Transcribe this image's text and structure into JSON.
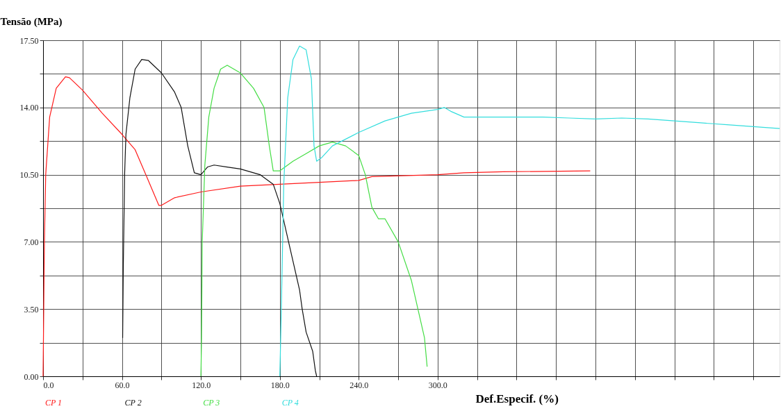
{
  "chart_data": {
    "type": "line",
    "xlabel": "Def.Especif. (%)",
    "ylabel": "Tensão (MPa)",
    "xlim": [
      0,
      560
    ],
    "ylim": [
      0,
      17.5
    ],
    "xticks": [
      {
        "value": 0,
        "label": "0.0"
      },
      {
        "value": 30,
        "label": null
      },
      {
        "value": 60,
        "label": "60.0"
      },
      {
        "value": 90,
        "label": null
      },
      {
        "value": 120,
        "label": "120.0"
      },
      {
        "value": 150,
        "label": null
      },
      {
        "value": 180,
        "label": "180.0"
      },
      {
        "value": 210,
        "label": null
      },
      {
        "value": 240,
        "label": "240.0"
      },
      {
        "value": 270,
        "label": null
      },
      {
        "value": 300,
        "label": "300.0"
      },
      {
        "value": 330,
        "label": null
      },
      {
        "value": 360,
        "label": null
      },
      {
        "value": 390,
        "label": null
      },
      {
        "value": 420,
        "label": null
      },
      {
        "value": 450,
        "label": null
      },
      {
        "value": 480,
        "label": null
      },
      {
        "value": 510,
        "label": null
      },
      {
        "value": 540,
        "label": null
      }
    ],
    "yticks": [
      {
        "value": 0,
        "label": "0.00"
      },
      {
        "value": 1.75,
        "label": null
      },
      {
        "value": 3.5,
        "label": "3.50"
      },
      {
        "value": 5.25,
        "label": null
      },
      {
        "value": 7,
        "label": "7.00"
      },
      {
        "value": 8.75,
        "label": null
      },
      {
        "value": 10.5,
        "label": "10.50"
      },
      {
        "value": 12.25,
        "label": null
      },
      {
        "value": 14,
        "label": "14.00"
      },
      {
        "value": 15.75,
        "label": null
      },
      {
        "value": 17.5,
        "label": "17.50"
      }
    ],
    "grid": true,
    "legend": false,
    "marker": "none",
    "line_style": "solid",
    "series": [
      {
        "name": "CP 1",
        "color": "#ff1a1a",
        "x": [
          0,
          1,
          2,
          5,
          10,
          17,
          20,
          30,
          45,
          60,
          70,
          80,
          88,
          90,
          100,
          120,
          150,
          180,
          210,
          240,
          250,
          300,
          320,
          350,
          416
        ],
        "values": [
          0,
          7,
          10.5,
          13.5,
          15,
          15.6,
          15.55,
          14.9,
          13.7,
          12.6,
          11.8,
          10.2,
          8.9,
          8.9,
          9.3,
          9.6,
          9.9,
          10.0,
          10.1,
          10.2,
          10.4,
          10.5,
          10.6,
          10.65,
          10.7
        ]
      },
      {
        "name": "CP 2",
        "color": "#111111",
        "x": [
          60.5,
          61,
          62,
          63,
          66,
          70,
          75,
          80,
          90,
          100,
          105,
          110,
          115,
          120,
          125,
          130,
          140,
          150,
          165,
          175,
          180,
          185,
          190,
          195,
          197,
          200,
          205,
          207,
          208
        ],
        "values": [
          2,
          5.8,
          10.5,
          12.6,
          14.5,
          16.0,
          16.5,
          16.45,
          15.8,
          14.8,
          14.0,
          12.0,
          10.6,
          10.5,
          10.9,
          11.0,
          10.9,
          10.8,
          10.5,
          10.0,
          9.0,
          7.5,
          6.0,
          4.5,
          3.5,
          2.3,
          1.3,
          0.3,
          0
        ]
      },
      {
        "name": "CP 3",
        "color": "#44dd44",
        "x": [
          120,
          120.5,
          121,
          123,
          126,
          130,
          135,
          140,
          150,
          160,
          168,
          172,
          175,
          180,
          190,
          200,
          210,
          220,
          230,
          240,
          245,
          250,
          255,
          260,
          270,
          280,
          285,
          290,
          292
        ],
        "values": [
          0,
          2,
          7,
          11,
          13.5,
          15,
          16.0,
          16.2,
          15.8,
          15.0,
          14.0,
          12,
          10.7,
          10.7,
          11.2,
          11.6,
          12.0,
          12.2,
          12.0,
          11.5,
          10.5,
          8.8,
          8.2,
          8.2,
          7.0,
          5.0,
          3.5,
          2.0,
          0.5
        ]
      },
      {
        "name": "CP 4",
        "color": "#33dddd",
        "x": [
          180,
          181,
          183,
          186,
          190,
          195,
          200,
          204,
          206,
          208,
          212,
          220,
          240,
          260,
          280,
          300,
          305,
          310,
          320,
          350,
          380,
          400,
          420,
          440,
          460,
          480,
          500,
          520,
          540,
          560
        ],
        "values": [
          0,
          3,
          10,
          14.5,
          16.5,
          17.2,
          17.0,
          15.5,
          12,
          11.2,
          11.4,
          12.0,
          12.7,
          13.3,
          13.7,
          13.9,
          14.0,
          13.8,
          13.5,
          13.5,
          13.5,
          13.45,
          13.4,
          13.45,
          13.4,
          13.3,
          13.2,
          13.1,
          13.0,
          12.9
        ]
      }
    ]
  }
}
